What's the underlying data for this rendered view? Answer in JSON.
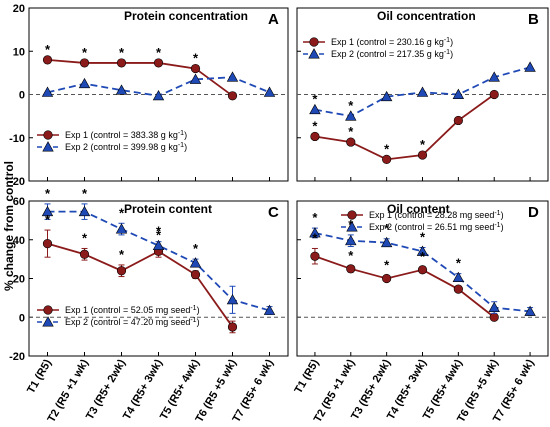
{
  "figure": {
    "ylabel": "% change from control",
    "xlabel_categories": [
      "T1 (R5)",
      "T2 (R5 +1 wk)",
      "T3 (R5+ 2wk)",
      "T4 (R5+ 3wk)",
      "T5 (R5+ 4wk)",
      "T6 (R5 +5 wk)",
      "T7 (R5+ 6 wk)"
    ],
    "colors": {
      "exp1": "#8b1a1a",
      "exp2": "#1f49b5",
      "zero_line": "#555555"
    },
    "series_markers": {
      "exp1": "circle",
      "exp2": "triangle"
    }
  },
  "chart_data": [
    {
      "panel": "A",
      "type": "line",
      "title": "Protein concentration",
      "letter": "A",
      "ylim": [
        -20,
        20
      ],
      "yticks": [
        "-20",
        "-10",
        "0",
        "10",
        "20"
      ],
      "ytick_values": [
        -20,
        -10,
        0,
        10,
        20
      ],
      "categories": [
        "T1 (R5)",
        "T2 (R5 +1 wk)",
        "T3 (R5+ 2wk)",
        "T4 (R5+ 3wk)",
        "T5 (R5+ 4wk)",
        "T6 (R5 +5 wk)",
        "T7 (R5+ 6 wk)"
      ],
      "legend_position": "lower-left",
      "legend": [
        {
          "label": "Exp 1 (control = 383.38 g kg",
          "sup": "-1",
          "tail": ")"
        },
        {
          "label": "Exp 2 (control = 399.98 g kg",
          "sup": "-1",
          "tail": ")"
        }
      ],
      "series": [
        {
          "name": "Exp 1",
          "values": [
            8,
            7.3,
            7.3,
            7.3,
            6,
            -0.3,
            null
          ]
        },
        {
          "name": "Exp 2",
          "values": [
            0.5,
            2.5,
            1,
            -0.3,
            3.5,
            4,
            0.5
          ]
        }
      ],
      "significance": [
        {
          "series": "Exp 1",
          "index": 0,
          "label": "*"
        },
        {
          "series": "Exp 1",
          "index": 1,
          "label": "*"
        },
        {
          "series": "Exp 1",
          "index": 2,
          "label": "*"
        },
        {
          "series": "Exp 1",
          "index": 3,
          "label": "*"
        },
        {
          "series": "Exp 1",
          "index": 4,
          "label": "*"
        }
      ]
    },
    {
      "panel": "B",
      "type": "line",
      "title": "Oil concentration",
      "letter": "B",
      "ylim": [
        -20,
        20
      ],
      "yticks": [],
      "ytick_values": [
        -20,
        -10,
        0,
        10,
        20
      ],
      "categories": [
        "T1 (R5)",
        "T2 (R5 +1 wk)",
        "T3 (R5+ 2wk)",
        "T4 (R5+ 3wk)",
        "T5 (R5+ 4wk)",
        "T6 (R5 +5 wk)",
        "T7 (R5+ 6 wk)"
      ],
      "legend_position": "upper-left",
      "legend": [
        {
          "label": "Exp 1 (control = 230.16 g kg",
          "sup": "-1",
          "tail": ")"
        },
        {
          "label": "Exp 2 (control = 217.35 g kg",
          "sup": "-1",
          "tail": ")"
        }
      ],
      "series": [
        {
          "name": "Exp 1",
          "values": [
            -9.7,
            -11,
            -15,
            -14,
            -6,
            0,
            null
          ]
        },
        {
          "name": "Exp 2",
          "values": [
            -3.5,
            -5,
            -0.5,
            0.5,
            0,
            4,
            6.3
          ]
        }
      ],
      "significance": [
        {
          "series": "Exp 2",
          "index": 0,
          "label": "*"
        },
        {
          "series": "Exp 2",
          "index": 1,
          "label": "*"
        },
        {
          "series": "Exp 1",
          "index": 0,
          "label": "*"
        },
        {
          "series": "Exp 1",
          "index": 1,
          "label": "*"
        },
        {
          "series": "Exp 1",
          "index": 2,
          "label": "*"
        },
        {
          "series": "Exp 1",
          "index": 3,
          "label": "*"
        }
      ]
    },
    {
      "panel": "C",
      "type": "line",
      "title": "Protein content",
      "letter": "C",
      "ylim": [
        -20,
        60
      ],
      "yticks": [
        "-20",
        "0",
        "20",
        "40",
        "60"
      ],
      "ytick_values": [
        -20,
        0,
        20,
        40,
        60
      ],
      "categories": [
        "T1 (R5)",
        "T2 (R5 +1 wk)",
        "T3 (R5+ 2wk)",
        "T4 (R5+ 3wk)",
        "T5 (R5+ 4wk)",
        "T6 (R5 +5 wk)",
        "T7 (R5+ 6 wk)"
      ],
      "legend_position": "lower-left",
      "legend": [
        {
          "label": "Exp 1 (control = 52.05 mg seed",
          "sup": "-1",
          "tail": ")"
        },
        {
          "label": "Exp 2 (control = 47.20 mg seed",
          "sup": "-1",
          "tail": ")"
        }
      ],
      "series": [
        {
          "name": "Exp 1",
          "values": [
            38,
            32.5,
            24,
            34,
            22,
            -5,
            null
          ],
          "errors": [
            7,
            3,
            3,
            3,
            2,
            3,
            null
          ]
        },
        {
          "name": "Exp 2",
          "values": [
            54.5,
            54.5,
            45.5,
            37,
            28,
            9,
            3.5
          ],
          "errors": [
            4,
            4,
            3,
            2,
            2,
            7,
            2
          ]
        }
      ],
      "significance": [
        {
          "series": "Exp 2",
          "index": 0,
          "label": "*"
        },
        {
          "series": "Exp 2",
          "index": 1,
          "label": "*"
        },
        {
          "series": "Exp 2",
          "index": 2,
          "label": "*"
        },
        {
          "series": "Exp 2",
          "index": 3,
          "label": "*"
        },
        {
          "series": "Exp 2",
          "index": 4,
          "label": "*"
        },
        {
          "series": "Exp 1",
          "index": 0,
          "label": "*"
        },
        {
          "series": "Exp 1",
          "index": 1,
          "label": "*"
        },
        {
          "series": "Exp 1",
          "index": 2,
          "label": "*"
        },
        {
          "series": "Exp 1",
          "index": 3,
          "label": "*"
        }
      ]
    },
    {
      "panel": "D",
      "type": "line",
      "title": "Oil content",
      "letter": "D",
      "ylim": [
        -20,
        60
      ],
      "yticks": [],
      "ytick_values": [
        -20,
        0,
        20,
        40,
        60
      ],
      "categories": [
        "T1 (R5)",
        "T2 (R5 +1 wk)",
        "T3 (R5+ 2wk)",
        "T4 (R5+ 3wk)",
        "T5 (R5+ 4wk)",
        "T6 (R5 +5 wk)",
        "T7 (R5+ 6 wk)"
      ],
      "legend_position": "upper-right",
      "legend": [
        {
          "label": "Exp 1 (control = 28.28 mg seed",
          "sup": "-1",
          "tail": ")"
        },
        {
          "label": "Exp 2 (control = 26.51 mg seed",
          "sup": "-1",
          "tail": ")"
        }
      ],
      "series": [
        {
          "name": "Exp 1",
          "values": [
            31.5,
            25,
            20,
            24.5,
            14.5,
            0,
            null
          ],
          "errors": [
            4,
            1.5,
            1.5,
            1.5,
            1.5,
            1,
            null
          ]
        },
        {
          "name": "Exp 2",
          "values": [
            43.5,
            39.5,
            38.5,
            34,
            20.5,
            5,
            3
          ],
          "errors": [
            2.5,
            3,
            2,
            2,
            2,
            3,
            2
          ]
        }
      ],
      "significance": [
        {
          "series": "Exp 2",
          "index": 0,
          "label": "*"
        },
        {
          "series": "Exp 2",
          "index": 1,
          "label": "*"
        },
        {
          "series": "Exp 2",
          "index": 2,
          "label": "*"
        },
        {
          "series": "Exp 2",
          "index": 3,
          "label": "*"
        },
        {
          "series": "Exp 2",
          "index": 4,
          "label": "*"
        },
        {
          "series": "Exp 1",
          "index": 0,
          "label": "*"
        },
        {
          "series": "Exp 1",
          "index": 1,
          "label": "*"
        },
        {
          "series": "Exp 1",
          "index": 2,
          "label": "*"
        },
        {
          "series": "Exp 1",
          "index": 3,
          "label": "*"
        }
      ]
    }
  ]
}
